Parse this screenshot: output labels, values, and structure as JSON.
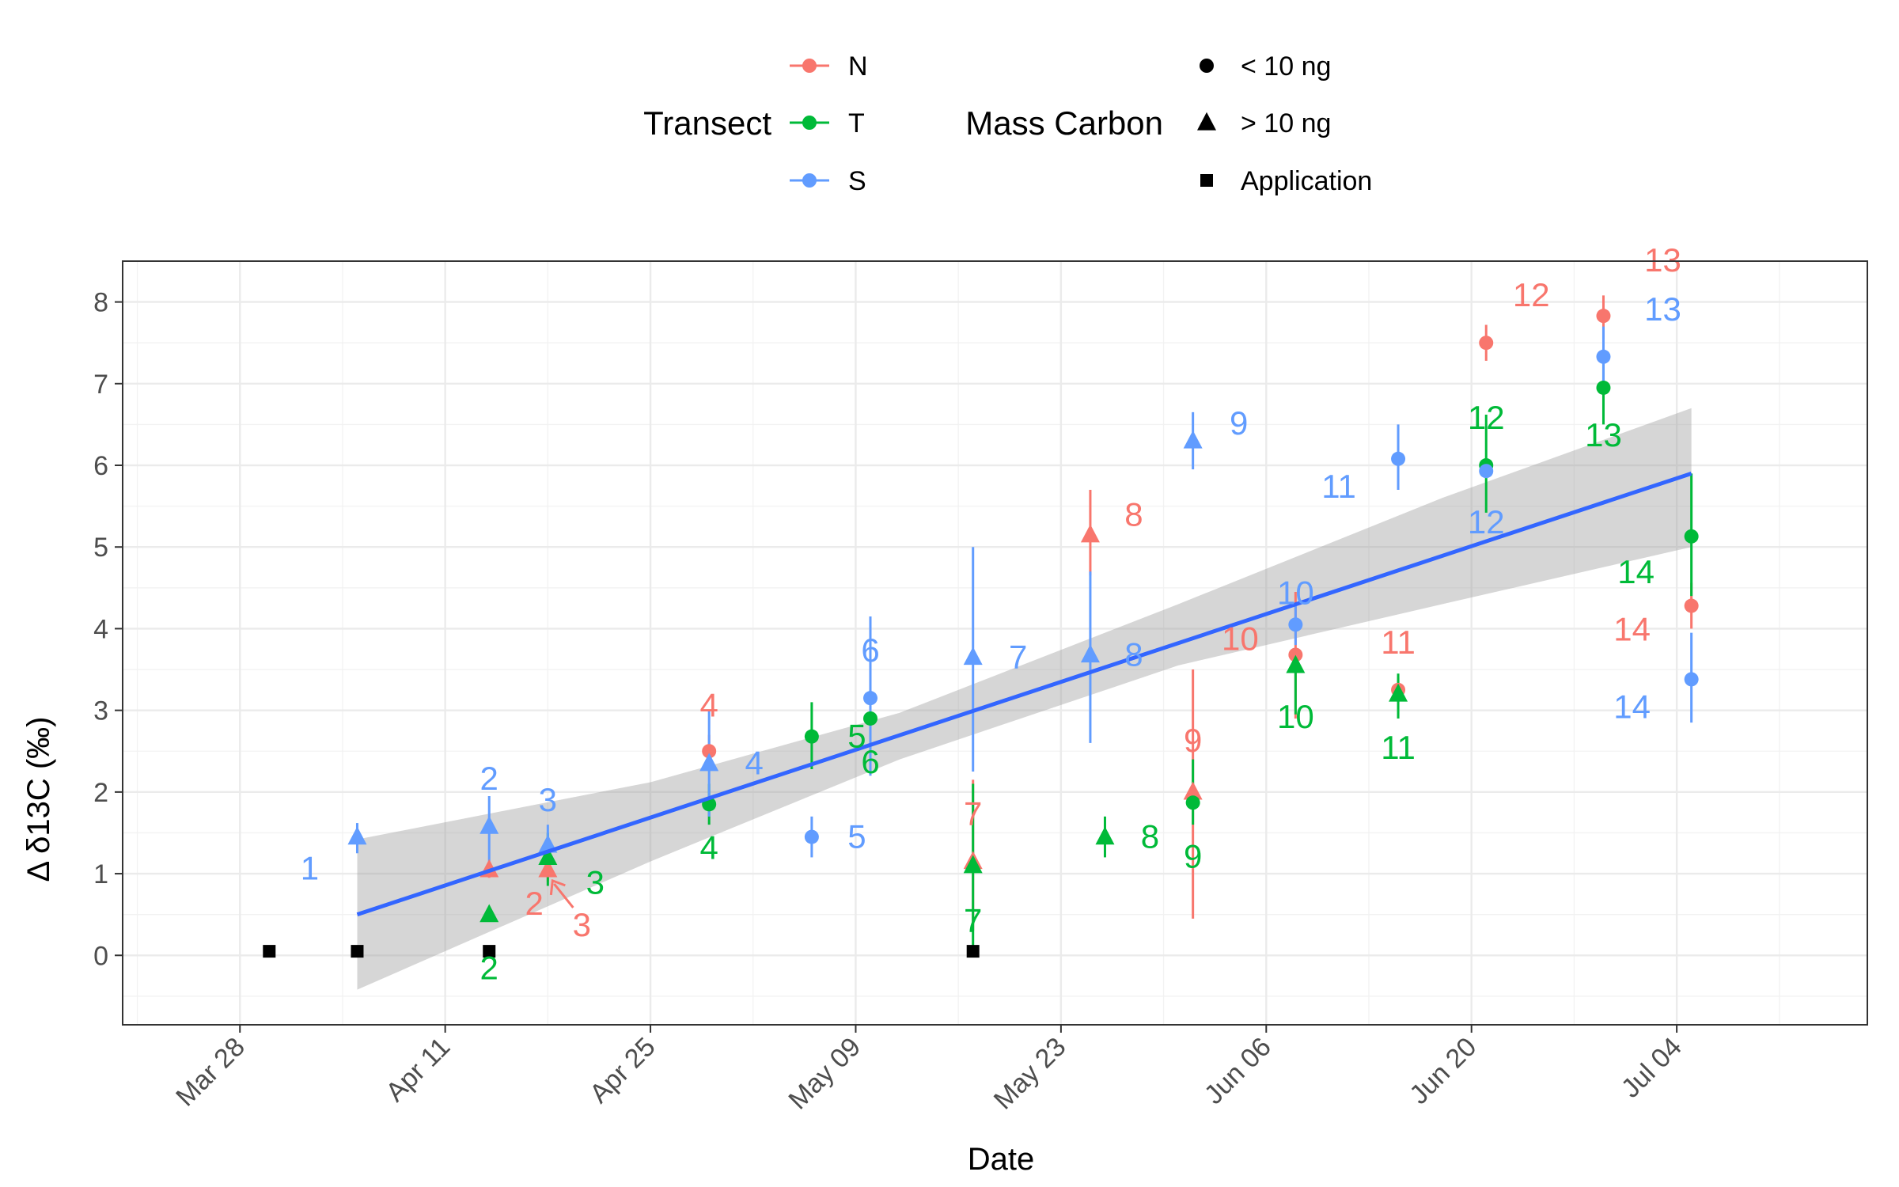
{
  "chart_data": {
    "type": "scatter",
    "xlabel": "Date",
    "ylabel": "Δ δ13C (‰)",
    "x_ticks": [
      "Mar 28",
      "Apr 11",
      "Apr 25",
      "May 09",
      "May 23",
      "Jun 06",
      "Jun 20",
      "Jul 04"
    ],
    "x_range": [
      "Mar 20",
      "Jul 17"
    ],
    "ylim": [
      -0.85,
      8.5
    ],
    "y_ticks": [
      0,
      1,
      2,
      3,
      4,
      5,
      6,
      7,
      8
    ],
    "grid": true,
    "legend": {
      "position": "top",
      "transect_title": "Transect",
      "mass_title": "Mass Carbon",
      "transect_items": [
        {
          "label": "N",
          "color": "#F8766D"
        },
        {
          "label": "T",
          "color": "#00BA38"
        },
        {
          "label": "S",
          "color": "#619CFF"
        }
      ],
      "mass_items": [
        {
          "label": "< 10 ng",
          "shape": "circle"
        },
        {
          "label": "> 10 ng",
          "shape": "triangle"
        },
        {
          "label": "Application",
          "shape": "square"
        }
      ]
    },
    "colors": {
      "N": "#F8766D",
      "T": "#00BA38",
      "S": "#619CFF",
      "trend": "#3366FF",
      "band": "#999999"
    },
    "series": [
      {
        "name": "N",
        "points": [
          {
            "date": "2017-04-14",
            "y": 1.05,
            "lo": 0.95,
            "hi": 1.15,
            "shape": "triangle",
            "label": "2"
          },
          {
            "date": "2017-04-18",
            "y": 1.05,
            "lo": 0.9,
            "hi": 1.2,
            "shape": "triangle",
            "label": "3"
          },
          {
            "date": "2017-04-29",
            "y": 2.5,
            "lo": 2.3,
            "hi": 2.7,
            "shape": "circle",
            "label": "4"
          },
          {
            "date": "2017-05-17",
            "y": 1.15,
            "lo": 0.3,
            "hi": 2.15,
            "shape": "triangle",
            "label": "7"
          },
          {
            "date": "2017-05-25",
            "y": 5.15,
            "lo": 4.65,
            "hi": 5.7,
            "shape": "triangle",
            "label": "8"
          },
          {
            "date": "2017-06-01",
            "y": 2.0,
            "lo": 0.45,
            "hi": 3.5,
            "shape": "triangle",
            "label": "9"
          },
          {
            "date": "2017-06-08",
            "y": 3.68,
            "lo": 2.9,
            "hi": 4.45,
            "shape": "circle",
            "label": "10"
          },
          {
            "date": "2017-06-15",
            "y": 3.25,
            "lo": 3.1,
            "hi": 3.4,
            "shape": "circle",
            "label": "11"
          },
          {
            "date": "2017-06-21",
            "y": 7.5,
            "lo": 7.28,
            "hi": 7.72,
            "shape": "circle",
            "label": "12"
          },
          {
            "date": "2017-06-29",
            "y": 7.83,
            "lo": 7.55,
            "hi": 8.08,
            "shape": "circle",
            "label": "13"
          },
          {
            "date": "2017-07-05",
            "y": 4.28,
            "lo": 4.0,
            "hi": 4.56,
            "shape": "circle",
            "label": "14"
          }
        ]
      },
      {
        "name": "T",
        "points": [
          {
            "date": "2017-04-14",
            "y": 0.5,
            "lo": 0.5,
            "hi": 0.5,
            "shape": "triangle",
            "label": "2"
          },
          {
            "date": "2017-04-18",
            "y": 1.2,
            "lo": 0.85,
            "hi": 1.5,
            "shape": "triangle",
            "label": "3"
          },
          {
            "date": "2017-04-29",
            "y": 1.85,
            "lo": 1.6,
            "hi": 2.1,
            "shape": "circle",
            "label": "4"
          },
          {
            "date": "2017-05-06",
            "y": 2.68,
            "lo": 2.28,
            "hi": 3.1,
            "shape": "circle",
            "label": "5"
          },
          {
            "date": "2017-05-10",
            "y": 2.9,
            "lo": 2.55,
            "hi": 3.25,
            "shape": "circle",
            "label": "6"
          },
          {
            "date": "2017-05-17",
            "y": 1.1,
            "lo": 0.1,
            "hi": 2.1,
            "shape": "triangle",
            "label": "7"
          },
          {
            "date": "2017-05-26",
            "y": 1.45,
            "lo": 1.2,
            "hi": 1.7,
            "shape": "triangle",
            "label": "8"
          },
          {
            "date": "2017-06-01",
            "y": 1.87,
            "lo": 1.6,
            "hi": 2.4,
            "shape": "circle",
            "label": "9"
          },
          {
            "date": "2017-06-08",
            "y": 3.55,
            "lo": 2.95,
            "hi": 3.7,
            "shape": "triangle",
            "label": "10"
          },
          {
            "date": "2017-06-15",
            "y": 3.2,
            "lo": 2.9,
            "hi": 3.45,
            "shape": "triangle",
            "label": "11"
          },
          {
            "date": "2017-06-21",
            "y": 6.0,
            "lo": 5.42,
            "hi": 6.62,
            "shape": "circle",
            "label": "12"
          },
          {
            "date": "2017-06-29",
            "y": 6.95,
            "lo": 6.5,
            "hi": 7.4,
            "shape": "circle",
            "label": "13"
          },
          {
            "date": "2017-07-05",
            "y": 5.13,
            "lo": 4.4,
            "hi": 5.9,
            "shape": "circle",
            "label": "14"
          }
        ]
      },
      {
        "name": "S",
        "points": [
          {
            "date": "2017-04-05",
            "y": 1.45,
            "lo": 1.25,
            "hi": 1.62,
            "shape": "triangle",
            "label": "1"
          },
          {
            "date": "2017-04-14",
            "y": 1.58,
            "lo": 1.15,
            "hi": 1.95,
            "shape": "triangle",
            "label": "2"
          },
          {
            "date": "2017-04-18",
            "y": 1.35,
            "lo": 1.12,
            "hi": 1.6,
            "shape": "triangle",
            "label": "3"
          },
          {
            "date": "2017-04-29",
            "y": 2.35,
            "lo": 1.7,
            "hi": 3.0,
            "shape": "triangle",
            "label": "4"
          },
          {
            "date": "2017-05-06",
            "y": 1.45,
            "lo": 1.2,
            "hi": 1.7,
            "shape": "circle",
            "label": "5"
          },
          {
            "date": "2017-05-10",
            "y": 3.15,
            "lo": 2.2,
            "hi": 4.15,
            "shape": "circle",
            "label": "6"
          },
          {
            "date": "2017-05-17",
            "y": 3.65,
            "lo": 2.25,
            "hi": 5.0,
            "shape": "triangle",
            "label": "7"
          },
          {
            "date": "2017-05-25",
            "y": 3.68,
            "lo": 2.6,
            "hi": 4.7,
            "shape": "triangle",
            "label": "8"
          },
          {
            "date": "2017-06-01",
            "y": 6.3,
            "lo": 5.95,
            "hi": 6.65,
            "shape": "triangle",
            "label": "9"
          },
          {
            "date": "2017-06-08",
            "y": 4.05,
            "lo": 3.8,
            "hi": 4.3,
            "shape": "circle",
            "label": "10"
          },
          {
            "date": "2017-06-15",
            "y": 6.08,
            "lo": 5.7,
            "hi": 6.5,
            "shape": "circle",
            "label": "11"
          },
          {
            "date": "2017-06-21",
            "y": 5.93,
            "lo": 5.93,
            "hi": 5.93,
            "shape": "circle",
            "label": "12"
          },
          {
            "date": "2017-06-29",
            "y": 7.33,
            "lo": 6.95,
            "hi": 7.7,
            "shape": "circle",
            "label": "13"
          },
          {
            "date": "2017-07-05",
            "y": 3.38,
            "lo": 2.85,
            "hi": 3.95,
            "shape": "circle",
            "label": "14"
          }
        ]
      },
      {
        "name": "Application",
        "points": [
          {
            "date": "2017-03-30",
            "y": 0.05,
            "shape": "square"
          },
          {
            "date": "2017-04-05",
            "y": 0.05,
            "shape": "square"
          },
          {
            "date": "2017-04-14",
            "y": 0.05,
            "shape": "square"
          },
          {
            "date": "2017-05-17",
            "y": 0.05,
            "shape": "square"
          }
        ]
      }
    ],
    "trend": {
      "points": [
        {
          "date": "2017-04-05",
          "y": 0.5
        },
        {
          "date": "2017-07-05",
          "y": 5.9
        }
      ],
      "band": [
        {
          "date": "2017-04-05",
          "lo": -0.42,
          "hi": 1.42
        },
        {
          "date": "2017-04-25",
          "lo": 1.15,
          "hi": 2.12
        },
        {
          "date": "2017-05-12",
          "lo": 2.4,
          "hi": 2.97
        },
        {
          "date": "2017-05-31",
          "lo": 3.55,
          "hi": 4.3
        },
        {
          "date": "2017-06-18",
          "lo": 4.3,
          "hi": 5.6
        },
        {
          "date": "2017-07-05",
          "lo": 5.0,
          "hi": 6.7
        }
      ]
    }
  }
}
